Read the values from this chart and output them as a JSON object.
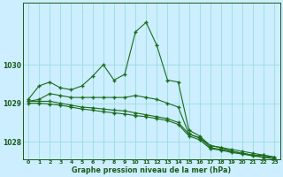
{
  "background_color": "#cceeff",
  "grid_color": "#99dddd",
  "line_color": "#1a6b1a",
  "text_color": "#1a5c1a",
  "xlabel": "Graphe pression niveau de la mer (hPa)",
  "xlim": [
    -0.5,
    23.5
  ],
  "ylim": [
    1027.55,
    1031.6
  ],
  "yticks": [
    1028,
    1029,
    1030
  ],
  "xticks": [
    0,
    1,
    2,
    3,
    4,
    5,
    6,
    7,
    8,
    9,
    10,
    11,
    12,
    13,
    14,
    15,
    16,
    17,
    18,
    19,
    20,
    21,
    22,
    23
  ],
  "series": [
    {
      "x": [
        0,
        1,
        2,
        3,
        4,
        5,
        6,
        7,
        8,
        9,
        10,
        11,
        12,
        13,
        14,
        15,
        16,
        17,
        18,
        19,
        20,
        21,
        22,
        23
      ],
      "y": [
        1029.1,
        1029.45,
        1029.55,
        1029.4,
        1029.35,
        1029.45,
        1029.7,
        1030.0,
        1029.6,
        1029.75,
        1030.85,
        1031.1,
        1030.5,
        1029.6,
        1029.55,
        1028.3,
        1028.15,
        1027.9,
        1027.85,
        1027.75,
        1027.7,
        1027.65,
        1027.65,
        1027.6
      ]
    },
    {
      "x": [
        0,
        1,
        2,
        3,
        4,
        5,
        6,
        7,
        8,
        9,
        10,
        11,
        12,
        13,
        14,
        15,
        16,
        17,
        18,
        19,
        20,
        21,
        22,
        23
      ],
      "y": [
        1029.05,
        1029.1,
        1029.25,
        1029.2,
        1029.15,
        1029.15,
        1029.15,
        1029.15,
        1029.15,
        1029.15,
        1029.2,
        1029.15,
        1029.1,
        1029.0,
        1028.9,
        1028.2,
        1028.1,
        1027.9,
        1027.85,
        1027.8,
        1027.75,
        1027.7,
        1027.65,
        1027.6
      ]
    },
    {
      "x": [
        0,
        1,
        2,
        3,
        4,
        5,
        6,
        7,
        8,
        9,
        10,
        11,
        12,
        13,
        14,
        15,
        16,
        17,
        18,
        19,
        20,
        21,
        22,
        23
      ],
      "y": [
        1029.05,
        1029.05,
        1029.05,
        1029.0,
        1028.95,
        1028.9,
        1028.88,
        1028.85,
        1028.82,
        1028.8,
        1028.75,
        1028.7,
        1028.65,
        1028.6,
        1028.5,
        1028.2,
        1028.1,
        1027.85,
        1027.8,
        1027.75,
        1027.7,
        1027.65,
        1027.6,
        1027.6
      ]
    },
    {
      "x": [
        0,
        1,
        2,
        3,
        4,
        5,
        6,
        7,
        8,
        9,
        10,
        11,
        12,
        13,
        14,
        15,
        16,
        17,
        18,
        19,
        20,
        21,
        22,
        23
      ],
      "y": [
        1029.0,
        1029.0,
        1028.98,
        1028.95,
        1028.9,
        1028.85,
        1028.82,
        1028.78,
        1028.75,
        1028.72,
        1028.68,
        1028.65,
        1028.6,
        1028.55,
        1028.45,
        1028.15,
        1028.05,
        1027.82,
        1027.78,
        1027.72,
        1027.68,
        1027.63,
        1027.6,
        1027.55
      ]
    }
  ]
}
